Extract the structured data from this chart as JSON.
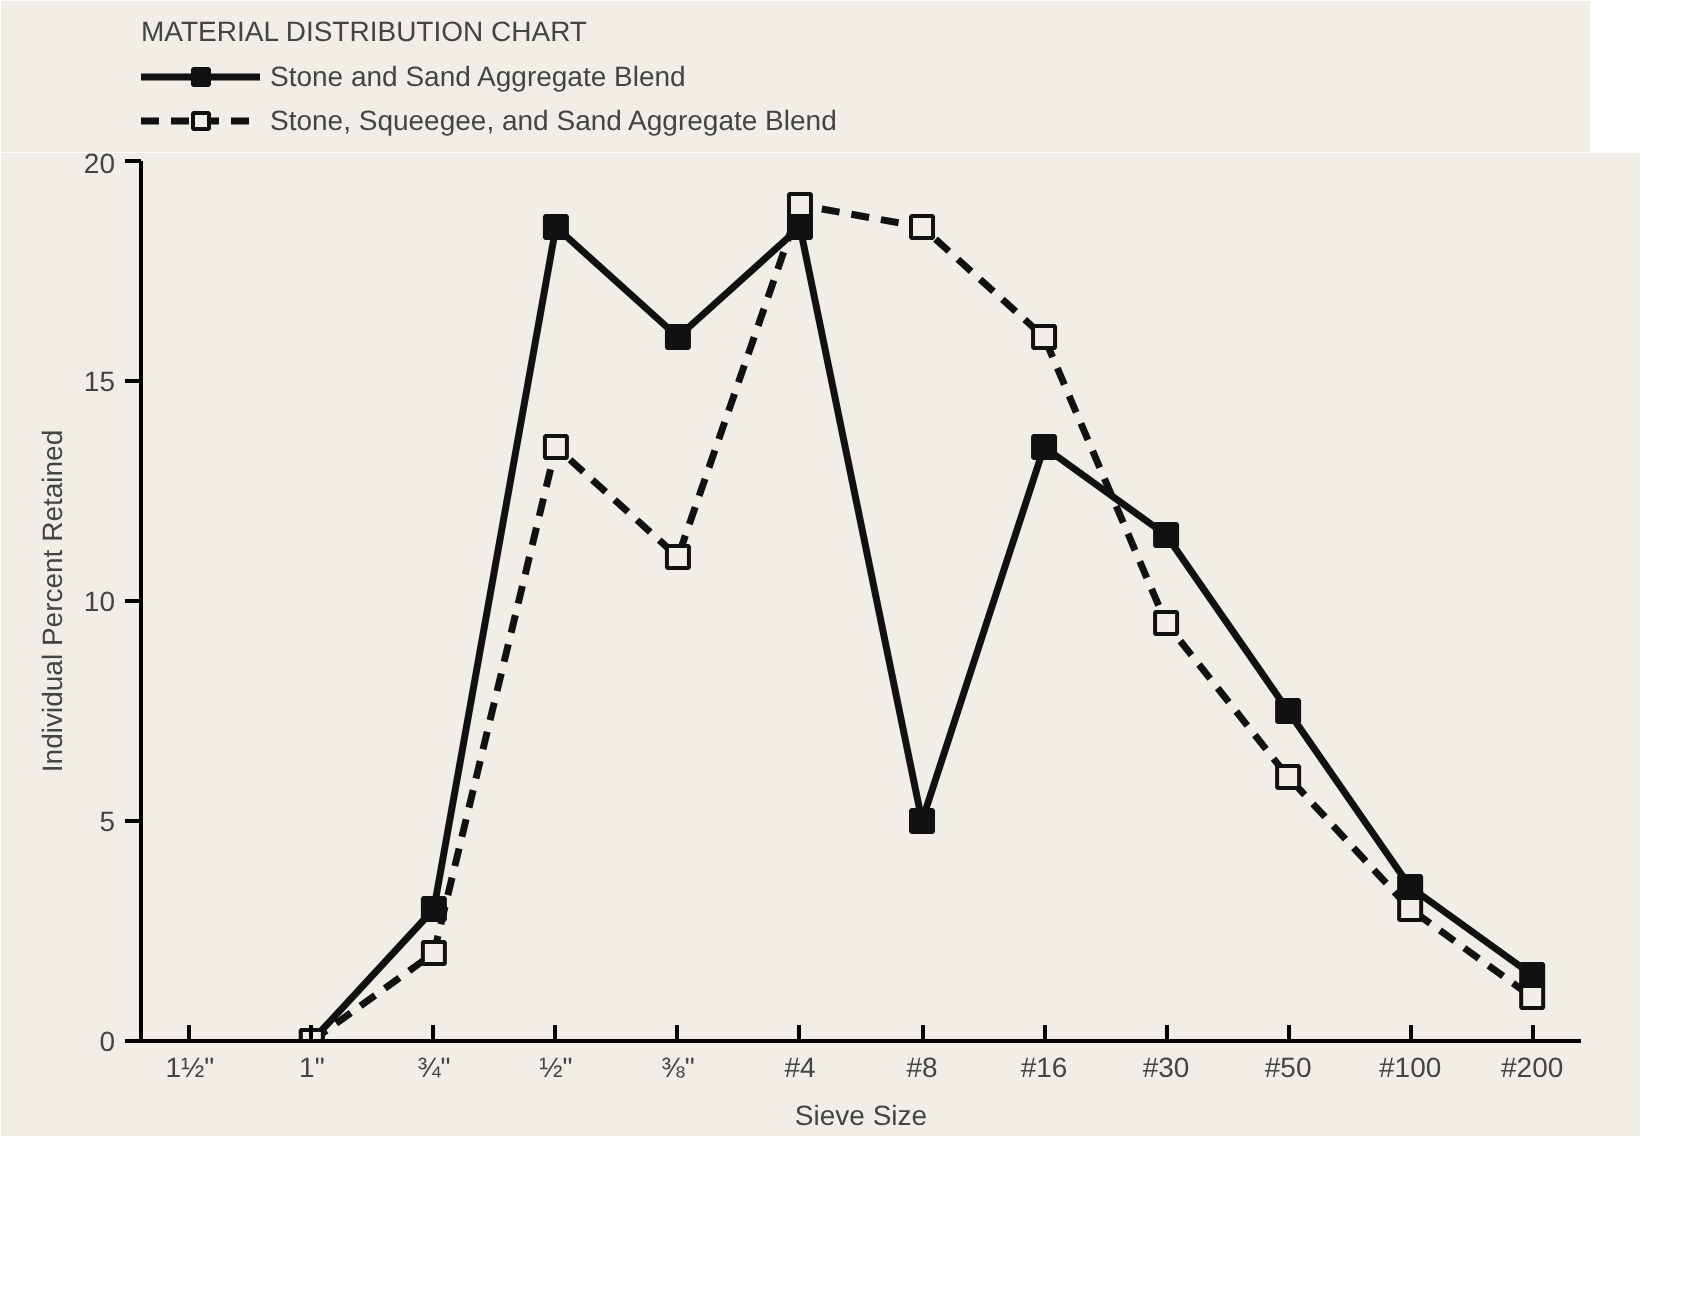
{
  "chart_data": {
    "type": "line",
    "title": "MATERIAL DISTRIBUTION CHART",
    "xlabel": "Sieve Size",
    "ylabel": "Individual Percent Retained",
    "categories": [
      "1½\"",
      "1\"",
      "¾\"",
      "½\"",
      "⅜\"",
      "#4",
      "#8",
      "#16",
      "#30",
      "#50",
      "#100",
      "#200"
    ],
    "series": [
      {
        "name": "Stone and Sand Aggregate Blend",
        "color": "#111111",
        "line_style": "solid",
        "values": [
          null,
          0,
          3,
          18.5,
          16,
          18.5,
          5,
          13.5,
          11.5,
          7.5,
          3.5,
          1.5
        ]
      },
      {
        "name": "Stone, Squeegee, and Sand Aggregate Blend",
        "color": "#111111",
        "line_style": "dashed",
        "values": [
          null,
          0,
          2,
          13.5,
          11,
          19,
          18.5,
          16,
          9.5,
          6,
          3,
          1
        ]
      }
    ],
    "ylim": [
      0,
      20
    ],
    "yticks": [
      0,
      5,
      10,
      15,
      20
    ],
    "grid": false,
    "legend": "top",
    "marker": "square"
  }
}
